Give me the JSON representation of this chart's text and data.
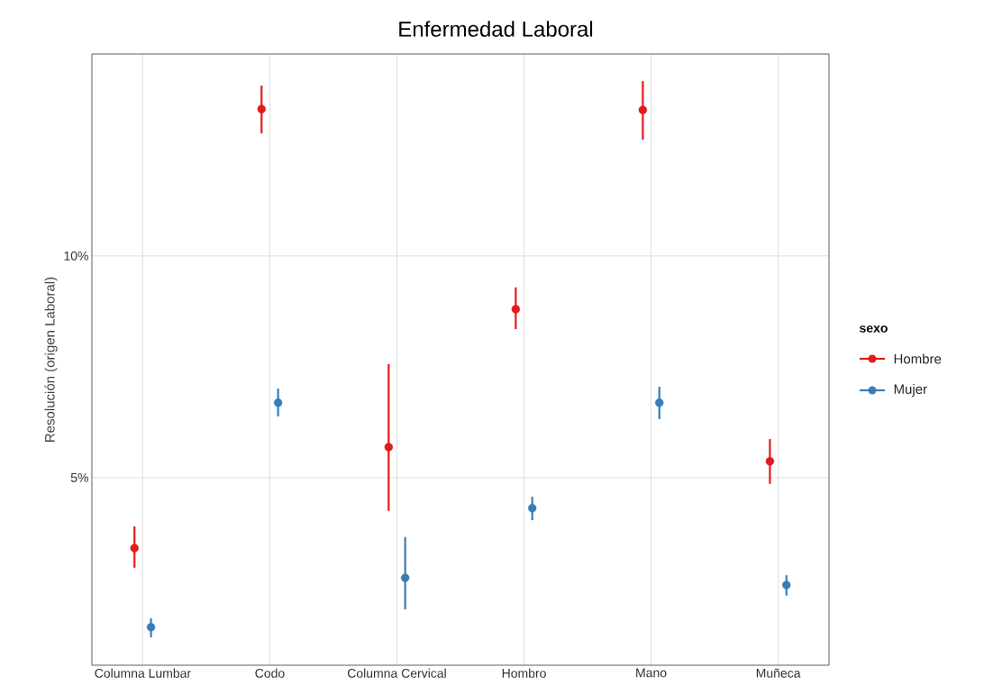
{
  "chart_data": {
    "type": "scatter",
    "title": "Enfermedad Laboral",
    "ylabel": "Resolución (origen Laboral)",
    "legend_title": "sexo",
    "categories": [
      "Columna Lumbar",
      "Codo",
      "Columna Cervical",
      "Hombro",
      "Mano",
      "Muñeca"
    ],
    "series": [
      {
        "name": "Hombre",
        "color": "#e41a1c",
        "values": [
          3.41,
          13.31,
          5.69,
          8.8,
          13.29,
          5.37
        ],
        "errors": [
          [
            2.97,
            3.9
          ],
          [
            12.76,
            13.84
          ],
          [
            4.25,
            7.56
          ],
          [
            8.35,
            9.29
          ],
          [
            12.62,
            13.94
          ],
          [
            4.86,
            5.87
          ]
        ]
      },
      {
        "name": "Mujer",
        "color": "#377eb8",
        "values": [
          1.63,
          6.69,
          2.74,
          4.31,
          6.69,
          2.58
        ],
        "errors": [
          [
            1.4,
            1.83
          ],
          [
            6.38,
            7.01
          ],
          [
            2.03,
            3.66
          ],
          [
            4.04,
            4.57
          ],
          [
            6.32,
            7.05
          ],
          [
            2.34,
            2.8
          ]
        ]
      }
    ],
    "ylim": [
      0.77,
      14.55
    ],
    "yticks": [
      {
        "value": 5,
        "label": "5%"
      },
      {
        "value": 10,
        "label": "10%"
      }
    ],
    "grid": true,
    "legend": "right",
    "marker": "circle"
  }
}
